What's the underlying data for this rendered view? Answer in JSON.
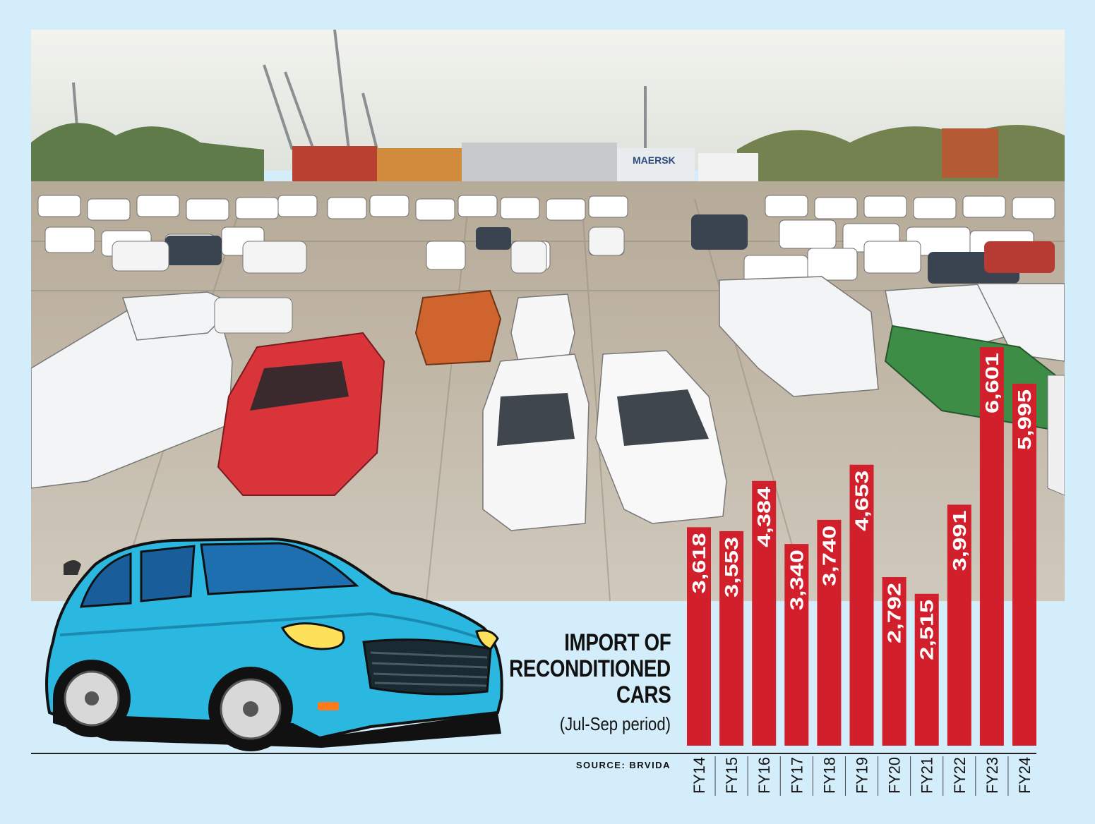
{
  "title_lines": [
    "IMPORT OF",
    "RECONDITIONED",
    "CARS"
  ],
  "subtitle": "(Jul-Sep period)",
  "source": "SOURCE: BRVIDA",
  "photo_sign": "MAERSK",
  "colors": {
    "background": "#d3eefa",
    "bar": "#d11f2c",
    "bar_text": "#ffffff",
    "car": "#2ab8e0"
  },
  "chart_data": {
    "type": "bar",
    "title": "IMPORT OF RECONDITIONED CARS",
    "subtitle": "(Jul-Sep period)",
    "categories": [
      "FY14",
      "FY15",
      "FY16",
      "FY17",
      "FY18",
      "FY19",
      "FY20",
      "FY21",
      "FY22",
      "FY23",
      "FY24"
    ],
    "values": [
      3618,
      3553,
      4384,
      3340,
      3740,
      4653,
      2792,
      2515,
      3991,
      6601,
      5995
    ],
    "value_labels": [
      "3,618",
      "3,553",
      "4,384",
      "3,340",
      "3,740",
      "4,653",
      "2,792",
      "2,515",
      "3,991",
      "6,601",
      "5,995"
    ],
    "ylim": [
      0,
      7000
    ],
    "grid": false,
    "bar_color": "#d11f2c"
  }
}
